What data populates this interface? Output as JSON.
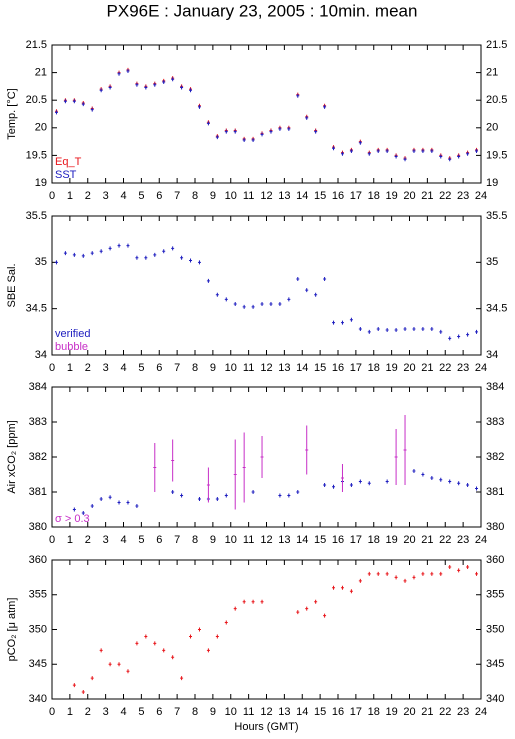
{
  "chart_data": [
    {
      "type": "scatter",
      "title": "PX96E : January 23, 2005 : 10min. mean",
      "ylabel": "Temp. [°C]",
      "xlim": [
        0,
        24
      ],
      "xticks": [
        0,
        1,
        2,
        3,
        4,
        5,
        6,
        7,
        8,
        9,
        10,
        11,
        12,
        13,
        14,
        15,
        16,
        17,
        18,
        19,
        20,
        21,
        22,
        23,
        24
      ],
      "ylim": [
        19,
        21.5
      ],
      "yticks": [
        19,
        19.5,
        20,
        20.5,
        21,
        21.5
      ],
      "legend": "lower left",
      "x": [
        0.25,
        0.75,
        1.25,
        1.75,
        2.25,
        2.75,
        3.25,
        3.75,
        4.25,
        4.75,
        5.25,
        5.75,
        6.25,
        6.75,
        7.25,
        7.75,
        8.25,
        8.75,
        9.25,
        9.75,
        10.25,
        10.75,
        11.25,
        11.75,
        12.25,
        12.75,
        13.25,
        13.75,
        14.25,
        14.75,
        15.25,
        15.75,
        16.25,
        16.75,
        17.25,
        17.75,
        18.25,
        18.75,
        19.25,
        19.75,
        20.25,
        20.75,
        21.25,
        21.75,
        22.25,
        22.75,
        23.25,
        23.75
      ],
      "series": [
        {
          "name": "Eq_T",
          "color": "#e8161b",
          "values": [
            20.3,
            20.5,
            20.5,
            20.45,
            20.35,
            20.7,
            20.75,
            21.0,
            21.05,
            20.8,
            20.75,
            20.8,
            20.85,
            20.9,
            20.75,
            20.7,
            20.4,
            20.1,
            19.85,
            19.95,
            19.95,
            19.8,
            19.8,
            19.9,
            19.95,
            20.0,
            20.0,
            20.6,
            20.2,
            19.95,
            20.4,
            19.65,
            19.55,
            19.6,
            19.75,
            19.55,
            19.6,
            19.6,
            19.5,
            19.45,
            19.6,
            19.6,
            19.6,
            19.5,
            19.45,
            19.5,
            19.55,
            19.6
          ]
        },
        {
          "name": "SST",
          "color": "#1d1dbf",
          "values": [
            20.28,
            20.48,
            20.48,
            20.43,
            20.33,
            20.68,
            20.73,
            20.98,
            21.03,
            20.78,
            20.73,
            20.78,
            20.83,
            20.88,
            20.73,
            20.68,
            20.38,
            20.08,
            19.83,
            19.93,
            19.93,
            19.78,
            19.78,
            19.88,
            19.93,
            19.98,
            19.98,
            20.58,
            20.18,
            19.93,
            20.38,
            19.63,
            19.53,
            19.58,
            19.73,
            19.53,
            19.58,
            19.58,
            19.48,
            19.43,
            19.58,
            19.58,
            19.58,
            19.48,
            19.43,
            19.48,
            19.53,
            19.58
          ]
        }
      ]
    },
    {
      "type": "scatter",
      "ylabel": "SBE Sal.",
      "xlim": [
        0,
        24
      ],
      "xticks": [
        0,
        1,
        2,
        3,
        4,
        5,
        6,
        7,
        8,
        9,
        10,
        11,
        12,
        13,
        14,
        15,
        16,
        17,
        18,
        19,
        20,
        21,
        22,
        23,
        24
      ],
      "ylim": [
        34,
        35.5
      ],
      "yticks": [
        34,
        34.5,
        35,
        35.5
      ],
      "legend": "lower left",
      "x": [
        0.25,
        0.75,
        1.25,
        1.75,
        2.25,
        2.75,
        3.25,
        3.75,
        4.25,
        4.75,
        5.25,
        5.75,
        6.25,
        6.75,
        7.25,
        7.75,
        8.25,
        8.75,
        9.25,
        9.75,
        10.25,
        10.75,
        11.25,
        11.75,
        12.25,
        12.75,
        13.25,
        13.75,
        14.25,
        14.75,
        15.25,
        15.75,
        16.25,
        16.75,
        17.25,
        17.75,
        18.25,
        18.75,
        19.25,
        19.75,
        20.25,
        20.75,
        21.25,
        21.75,
        22.25,
        22.75,
        23.25,
        23.75
      ],
      "series": [
        {
          "name": "verified",
          "color": "#1d1dbf",
          "values": [
            35.0,
            35.1,
            35.08,
            35.07,
            35.1,
            35.12,
            35.15,
            35.18,
            35.18,
            35.05,
            35.05,
            35.08,
            35.12,
            35.15,
            35.05,
            35.02,
            35.0,
            34.8,
            34.65,
            34.6,
            34.55,
            34.52,
            34.52,
            34.55,
            34.55,
            34.55,
            34.6,
            34.82,
            34.7,
            34.65,
            34.82,
            34.35,
            34.35,
            34.38,
            34.28,
            34.25,
            34.28,
            34.27,
            34.27,
            34.28,
            34.28,
            34.28,
            34.28,
            34.25,
            34.18,
            34.2,
            34.22,
            34.25
          ]
        },
        {
          "name": "bubble",
          "color": "#c72fc7",
          "values": [
            null,
            null,
            null,
            null,
            null,
            null,
            null,
            null,
            null,
            null,
            null,
            null,
            null,
            null,
            null,
            null,
            null,
            null,
            null,
            null,
            null,
            null,
            null,
            null,
            null,
            null,
            null,
            null,
            null,
            null,
            null,
            null,
            null,
            null,
            null,
            null,
            null,
            null,
            null,
            null,
            null,
            null,
            null,
            null,
            null,
            null,
            null,
            null
          ]
        }
      ]
    },
    {
      "type": "scatter",
      "ylabel": "Air xCO₂ [ppm]",
      "xlim": [
        0,
        24
      ],
      "xticks": [
        0,
        1,
        2,
        3,
        4,
        5,
        6,
        7,
        8,
        9,
        10,
        11,
        12,
        13,
        14,
        15,
        16,
        17,
        18,
        19,
        20,
        21,
        22,
        23,
        24
      ],
      "ylim": [
        380,
        384
      ],
      "yticks": [
        380,
        381,
        382,
        383,
        384
      ],
      "legend": "lower left",
      "x": [
        0.25,
        0.75,
        1.25,
        1.75,
        2.25,
        2.75,
        3.25,
        3.75,
        4.25,
        4.75,
        5.25,
        5.75,
        6.25,
        6.75,
        7.25,
        7.75,
        8.25,
        8.75,
        9.25,
        9.75,
        10.25,
        10.75,
        11.25,
        11.75,
        12.25,
        12.75,
        13.25,
        13.75,
        14.25,
        14.75,
        15.25,
        15.75,
        16.25,
        16.75,
        17.25,
        17.75,
        18.25,
        18.75,
        19.25,
        19.75,
        20.25,
        20.75,
        21.25,
        21.75,
        22.25,
        22.75,
        23.25,
        23.75
      ],
      "series": [
        {
          "color": "#1d1dbf",
          "values": [
            null,
            null,
            380.5,
            380.4,
            380.6,
            380.8,
            380.85,
            380.7,
            380.7,
            380.6,
            null,
            null,
            null,
            381.0,
            380.9,
            null,
            380.8,
            380.8,
            380.8,
            380.9,
            null,
            null,
            381.0,
            null,
            null,
            380.9,
            380.9,
            381.0,
            null,
            null,
            381.2,
            381.15,
            381.3,
            381.2,
            381.3,
            381.25,
            null,
            381.3,
            null,
            null,
            381.6,
            381.5,
            381.4,
            381.35,
            381.3,
            381.25,
            381.2,
            381.1
          ]
        },
        {
          "name": "σ > 0.3",
          "color": "#c72fc7",
          "values": [
            null,
            null,
            null,
            null,
            null,
            null,
            null,
            null,
            null,
            null,
            null,
            381.7,
            null,
            381.9,
            null,
            null,
            null,
            381.2,
            null,
            null,
            381.5,
            381.7,
            null,
            382.0,
            null,
            null,
            null,
            null,
            382.2,
            null,
            null,
            null,
            381.4,
            null,
            null,
            null,
            null,
            null,
            382.0,
            382.2,
            null,
            null,
            null,
            null,
            null,
            null,
            null,
            null
          ],
          "errors": [
            null,
            null,
            null,
            null,
            null,
            null,
            null,
            null,
            null,
            null,
            null,
            0.7,
            null,
            0.6,
            null,
            null,
            null,
            0.5,
            null,
            null,
            1.0,
            1.0,
            null,
            0.6,
            null,
            null,
            null,
            null,
            0.7,
            null,
            null,
            null,
            0.4,
            null,
            null,
            null,
            null,
            null,
            0.8,
            1.0,
            null,
            null,
            null,
            null,
            null,
            null,
            null,
            null
          ]
        }
      ]
    },
    {
      "type": "scatter",
      "ylabel": "pCO₂ [μ atm]",
      "xlabel": "Hours (GMT)",
      "xlim": [
        0,
        24
      ],
      "xticks": [
        0,
        1,
        2,
        3,
        4,
        5,
        6,
        7,
        8,
        9,
        10,
        11,
        12,
        13,
        14,
        15,
        16,
        17,
        18,
        19,
        20,
        21,
        22,
        23,
        24
      ],
      "ylim": [
        340,
        360
      ],
      "yticks": [
        340,
        345,
        350,
        355,
        360
      ],
      "x": [
        0.25,
        0.75,
        1.25,
        1.75,
        2.25,
        2.75,
        3.25,
        3.75,
        4.25,
        4.75,
        5.25,
        5.75,
        6.25,
        6.75,
        7.25,
        7.75,
        8.25,
        8.75,
        9.25,
        9.75,
        10.25,
        10.75,
        11.25,
        11.75,
        12.25,
        12.75,
        13.25,
        13.75,
        14.25,
        14.75,
        15.25,
        15.75,
        16.25,
        16.75,
        17.25,
        17.75,
        18.25,
        18.75,
        19.25,
        19.75,
        20.25,
        20.75,
        21.25,
        21.75,
        22.25,
        22.75,
        23.25,
        23.75
      ],
      "series": [
        {
          "color": "#e8161b",
          "values": [
            null,
            null,
            342,
            341,
            343,
            347,
            345,
            345,
            344,
            348,
            349,
            348,
            347,
            346,
            343,
            349,
            350,
            347,
            349,
            351,
            353,
            354,
            354,
            354,
            null,
            null,
            null,
            352.5,
            353,
            354,
            352,
            356,
            356,
            355.5,
            357,
            358,
            358,
            358,
            357.5,
            357,
            357.5,
            358,
            358,
            358,
            359,
            358.5,
            359,
            358
          ]
        }
      ]
    }
  ]
}
